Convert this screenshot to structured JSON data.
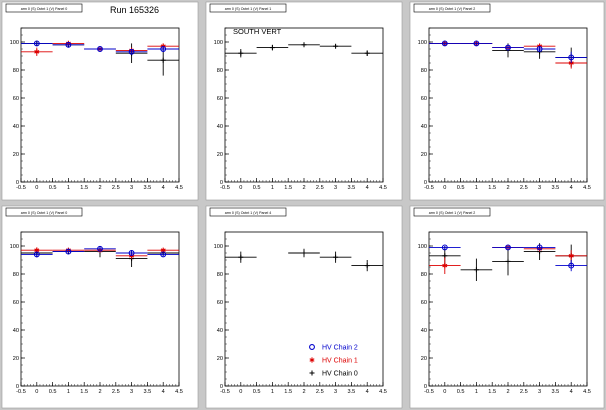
{
  "colors": {
    "pad_bg": "#ffffff",
    "canvas_bg": "#c8c8c8",
    "axis": "#000000",
    "chain0": "#000000",
    "chain1": "#dd0000",
    "chain2": "#0000cc"
  },
  "run_label": "Run 165326",
  "legend": {
    "items": [
      {
        "label": "HV Chain 2",
        "marker": "open-circle",
        "color_key": "chain2"
      },
      {
        "label": "HV Chain 1",
        "marker": "star",
        "color_key": "chain1"
      },
      {
        "label": "HV Chain 0",
        "marker": "plus",
        "color_key": "chain0"
      }
    ]
  },
  "chart_data": [
    {
      "type": "scatter",
      "title": "arm 0 (S) Octnt 1 (V) Panel 0",
      "annotation": "",
      "xlim": [
        -0.5,
        4.5
      ],
      "ylim": [
        0,
        110
      ],
      "xticks": [
        "-0.5",
        "0",
        "0.5",
        "1",
        "1.5",
        "2",
        "2.5",
        "3",
        "3.5",
        "4",
        "4.5"
      ],
      "yticks": [
        "0",
        "20",
        "40",
        "60",
        "80",
        "100"
      ],
      "series": [
        {
          "color_key": "chain0",
          "marker": "plus",
          "points": [
            {
              "x": 0,
              "y": 99,
              "e": 1
            },
            {
              "x": 1,
              "y": 98,
              "e": 2
            },
            {
              "x": 2,
              "y": 95,
              "e": 2
            },
            {
              "x": 3,
              "y": 92,
              "e": 7
            },
            {
              "x": 4,
              "y": 87,
              "e": 11
            }
          ]
        },
        {
          "color_key": "chain1",
          "marker": "star",
          "points": [
            {
              "x": 0,
              "y": 93,
              "e": 3
            },
            {
              "x": 1,
              "y": 99,
              "e": 1
            },
            {
              "x": 2,
              "y": 95,
              "e": 1
            },
            {
              "x": 3,
              "y": 94,
              "e": 2
            },
            {
              "x": 4,
              "y": 97,
              "e": 2
            }
          ]
        },
        {
          "color_key": "chain2",
          "marker": "open-circle",
          "points": [
            {
              "x": 0,
              "y": 99,
              "e": 1
            },
            {
              "x": 1,
              "y": 98,
              "e": 1
            },
            {
              "x": 2,
              "y": 95,
              "e": 1
            },
            {
              "x": 3,
              "y": 93,
              "e": 2
            },
            {
              "x": 4,
              "y": 95,
              "e": 2
            }
          ]
        }
      ]
    },
    {
      "type": "scatter",
      "title": "arm 0 (S) Octnt 1 (V) Panel 1",
      "annotation": "SOUTH VERT",
      "xlim": [
        -0.5,
        4.5
      ],
      "ylim": [
        0,
        110
      ],
      "xticks": [
        "-0.5",
        "0",
        "0.5",
        "1",
        "1.5",
        "2",
        "2.5",
        "3",
        "3.5",
        "4",
        "4.5"
      ],
      "yticks": [
        "0",
        "20",
        "40",
        "60",
        "80",
        "100"
      ],
      "series": [
        {
          "color_key": "chain0",
          "marker": "plus",
          "points": [
            {
              "x": 0,
              "y": 92,
              "e": 3
            },
            {
              "x": 1,
              "y": 96,
              "e": 2
            },
            {
              "x": 2,
              "y": 98,
              "e": 1
            },
            {
              "x": 3,
              "y": 97,
              "e": 1
            },
            {
              "x": 4,
              "y": 92,
              "e": 2
            }
          ]
        }
      ]
    },
    {
      "type": "scatter",
      "title": "arm 0 (S) Octnt 1 (V) Panel 2",
      "annotation": "",
      "xlim": [
        -0.5,
        4.5
      ],
      "ylim": [
        0,
        110
      ],
      "xticks": [
        "-0.5",
        "0",
        "0.5",
        "1",
        "1.5",
        "2",
        "2.5",
        "3",
        "3.5",
        "4",
        "4.5"
      ],
      "yticks": [
        "0",
        "20",
        "40",
        "60",
        "80",
        "100"
      ],
      "series": [
        {
          "color_key": "chain0",
          "marker": "plus",
          "points": [
            {
              "x": 0,
              "y": 99,
              "e": 1
            },
            {
              "x": 1,
              "y": 99,
              "e": 1
            },
            {
              "x": 2,
              "y": 94,
              "e": 5
            },
            {
              "x": 3,
              "y": 93,
              "e": 5
            },
            {
              "x": 4,
              "y": 89,
              "e": 7
            }
          ]
        },
        {
          "color_key": "chain1",
          "marker": "star",
          "points": [
            {
              "x": 0,
              "y": 99,
              "e": 1
            },
            {
              "x": 1,
              "y": 99,
              "e": 1
            },
            {
              "x": 2,
              "y": 96,
              "e": 2
            },
            {
              "x": 3,
              "y": 97,
              "e": 2
            },
            {
              "x": 4,
              "y": 85,
              "e": 4
            }
          ]
        },
        {
          "color_key": "chain2",
          "marker": "open-circle",
          "points": [
            {
              "x": 0,
              "y": 99,
              "e": 1
            },
            {
              "x": 1,
              "y": 99,
              "e": 1
            },
            {
              "x": 2,
              "y": 96,
              "e": 2
            },
            {
              "x": 3,
              "y": 95,
              "e": 2
            },
            {
              "x": 4,
              "y": 89,
              "e": 4
            }
          ]
        }
      ]
    },
    {
      "type": "scatter",
      "title": "arm 0 (S) Octnt 1 (V) Panel 0",
      "annotation": "",
      "xlim": [
        -0.5,
        4.5
      ],
      "ylim": [
        0,
        110
      ],
      "xticks": [
        "-0.5",
        "0",
        "0.5",
        "1",
        "1.5",
        "2",
        "2.5",
        "3",
        "3.5",
        "4",
        "4.5"
      ],
      "yticks": [
        "0",
        "20",
        "40",
        "60",
        "80",
        "100"
      ],
      "series": [
        {
          "color_key": "chain0",
          "marker": "plus",
          "points": [
            {
              "x": 0,
              "y": 95,
              "e": 3
            },
            {
              "x": 1,
              "y": 96,
              "e": 2
            },
            {
              "x": 2,
              "y": 96,
              "e": 4
            },
            {
              "x": 3,
              "y": 91,
              "e": 6
            },
            {
              "x": 4,
              "y": 95,
              "e": 2
            }
          ]
        },
        {
          "color_key": "chain1",
          "marker": "star",
          "points": [
            {
              "x": 0,
              "y": 97,
              "e": 2
            },
            {
              "x": 1,
              "y": 97,
              "e": 1
            },
            {
              "x": 2,
              "y": 97,
              "e": 1
            },
            {
              "x": 3,
              "y": 93,
              "e": 2
            },
            {
              "x": 4,
              "y": 97,
              "e": 1
            }
          ]
        },
        {
          "color_key": "chain2",
          "marker": "open-circle",
          "points": [
            {
              "x": 0,
              "y": 94,
              "e": 2
            },
            {
              "x": 1,
              "y": 96,
              "e": 1
            },
            {
              "x": 2,
              "y": 98,
              "e": 1
            },
            {
              "x": 3,
              "y": 95,
              "e": 2
            },
            {
              "x": 4,
              "y": 94,
              "e": 1
            }
          ]
        }
      ]
    },
    {
      "type": "scatter",
      "title": "arm 0 (S) Octnt 1 (V) Panel 4",
      "annotation": "",
      "xlim": [
        -0.5,
        4.5
      ],
      "ylim": [
        0,
        110
      ],
      "xticks": [
        "-0.5",
        "0",
        "0.5",
        "1",
        "1.5",
        "2",
        "2.5",
        "3",
        "3.5",
        "4",
        "4.5"
      ],
      "yticks": [
        "0",
        "20",
        "40",
        "60",
        "80",
        "100"
      ],
      "series": [
        {
          "color_key": "chain0",
          "marker": "plus",
          "points": [
            {
              "x": 0,
              "y": 92,
              "e": 4
            },
            {
              "x": 2,
              "y": 95,
              "e": 3
            },
            {
              "x": 3,
              "y": 92,
              "e": 4
            },
            {
              "x": 4,
              "y": 86,
              "e": 4
            }
          ]
        }
      ]
    },
    {
      "type": "scatter",
      "title": "arm 0 (S) Octnt 1 (V) Panel 2",
      "annotation": "",
      "xlim": [
        -0.5,
        4.5
      ],
      "ylim": [
        0,
        110
      ],
      "xticks": [
        "-0.5",
        "0",
        "0.5",
        "1",
        "1.5",
        "2",
        "2.5",
        "3",
        "3.5",
        "4",
        "4.5"
      ],
      "yticks": [
        "0",
        "20",
        "40",
        "60",
        "80",
        "100"
      ],
      "series": [
        {
          "color_key": "chain0",
          "marker": "plus",
          "points": [
            {
              "x": 0,
              "y": 93,
              "e": 7
            },
            {
              "x": 1,
              "y": 83,
              "e": 8
            },
            {
              "x": 2,
              "y": 89,
              "e": 10
            },
            {
              "x": 3,
              "y": 96,
              "e": 6
            },
            {
              "x": 4,
              "y": 93,
              "e": 8
            }
          ]
        },
        {
          "color_key": "chain1",
          "marker": "star",
          "points": [
            {
              "x": 0,
              "y": 86,
              "e": 6
            },
            {
              "x": 2,
              "y": 99,
              "e": 1
            },
            {
              "x": 3,
              "y": 98,
              "e": 2
            },
            {
              "x": 4,
              "y": 93,
              "e": 4
            }
          ]
        },
        {
          "color_key": "chain2",
          "marker": "open-circle",
          "points": [
            {
              "x": 0,
              "y": 99,
              "e": 1
            },
            {
              "x": 2,
              "y": 99,
              "e": 1
            },
            {
              "x": 3,
              "y": 99,
              "e": 1
            },
            {
              "x": 4,
              "y": 86,
              "e": 4
            }
          ]
        }
      ]
    }
  ]
}
